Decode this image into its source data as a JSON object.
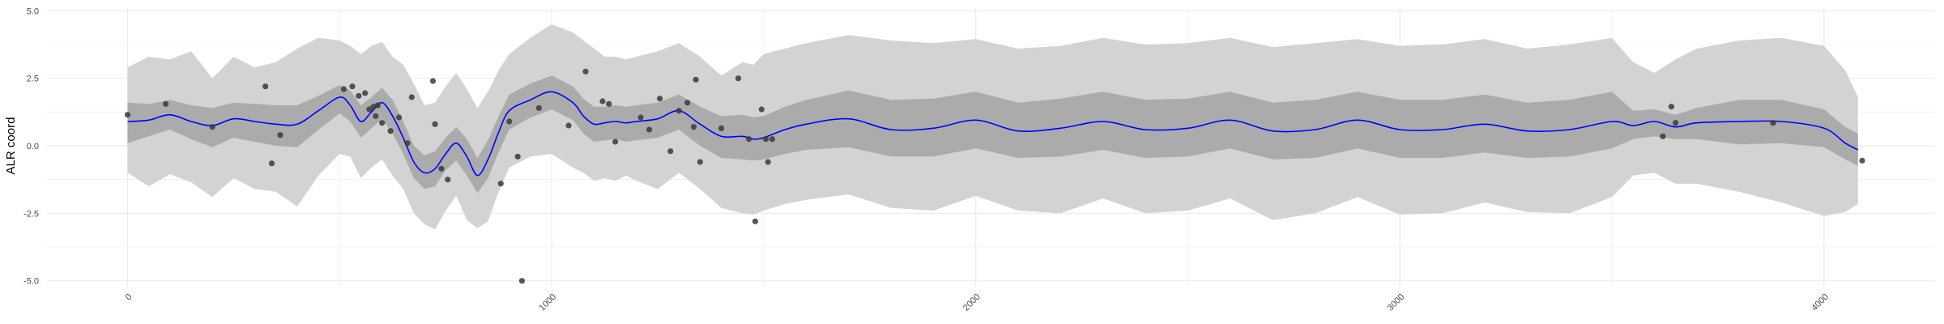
{
  "chart_data": {
    "type": "line",
    "title": "",
    "xlabel": "",
    "ylabel": "ALR coord",
    "xlim": [
      -190,
      4260
    ],
    "ylim": [
      -5.25,
      5.1
    ],
    "x_ticks": [
      0,
      1000,
      2000,
      3000,
      4000
    ],
    "x_tick_labels": [
      "0",
      "1000",
      "2000",
      "3000",
      "4000"
    ],
    "y_ticks": [
      -5.0,
      -2.5,
      0.0,
      2.5,
      5.0
    ],
    "y_tick_labels": [
      "-5.0",
      "-2.5",
      "0.0",
      "2.5",
      "5.0"
    ],
    "grid": true,
    "legend": "none",
    "colors": {
      "line": "#0000ff",
      "inner_band": "#ababab",
      "outer_band": "#d3d3d3",
      "points": "#3a3a3a",
      "grid": "#ebebeb"
    },
    "series": [
      {
        "type": "line",
        "x": [
          0,
          50,
          100,
          150,
          200,
          250,
          300,
          350,
          400,
          450,
          500,
          525,
          550,
          575,
          600,
          625,
          650,
          675,
          700,
          725,
          750,
          775,
          800,
          825,
          850,
          875,
          900,
          950,
          1000,
          1050,
          1075,
          1100,
          1125,
          1150,
          1175,
          1200,
          1250,
          1300,
          1350,
          1400,
          1450,
          1475,
          1500,
          1550,
          1600,
          1700,
          1800,
          1900,
          2000,
          2100,
          2200,
          2300,
          2400,
          2500,
          2600,
          2700,
          2800,
          2900,
          3000,
          3100,
          3200,
          3300,
          3400,
          3500,
          3550,
          3600,
          3650,
          3700,
          3800,
          3900,
          4000,
          4050,
          4080
        ],
        "y": [
          0.9,
          0.95,
          1.15,
          0.9,
          0.75,
          1.0,
          0.9,
          0.8,
          0.8,
          1.3,
          1.8,
          1.5,
          0.9,
          1.25,
          1.6,
          1.1,
          0.3,
          -0.6,
          -1.0,
          -0.85,
          -0.3,
          0.1,
          -0.4,
          -1.1,
          -0.5,
          0.5,
          1.3,
          1.7,
          2.0,
          1.6,
          1.1,
          0.8,
          0.85,
          0.9,
          0.85,
          0.9,
          1.0,
          1.3,
          0.8,
          0.35,
          0.35,
          0.25,
          0.3,
          0.6,
          0.8,
          1.0,
          0.6,
          0.65,
          0.95,
          0.55,
          0.65,
          0.9,
          0.6,
          0.65,
          0.95,
          0.55,
          0.6,
          0.95,
          0.6,
          0.6,
          0.8,
          0.55,
          0.6,
          0.9,
          0.75,
          0.9,
          0.7,
          0.85,
          0.9,
          0.9,
          0.65,
          0.1,
          -0.15
        ]
      },
      {
        "type": "band",
        "x": [
          0,
          50,
          100,
          150,
          200,
          250,
          300,
          350,
          400,
          450,
          500,
          525,
          550,
          575,
          600,
          625,
          650,
          675,
          700,
          725,
          750,
          775,
          800,
          825,
          850,
          875,
          900,
          950,
          1000,
          1050,
          1075,
          1100,
          1125,
          1150,
          1175,
          1200,
          1250,
          1300,
          1350,
          1400,
          1450,
          1475,
          1500,
          1550,
          1600,
          1700,
          1800,
          1900,
          2000,
          2100,
          2200,
          2300,
          2400,
          2500,
          2600,
          2700,
          2800,
          2900,
          3000,
          3100,
          3200,
          3300,
          3400,
          3500,
          3550,
          3600,
          3650,
          3700,
          3800,
          3900,
          4000,
          4050,
          4080
        ],
        "lower": [
          0.1,
          0.35,
          0.6,
          0.25,
          -0.05,
          0.3,
          0.15,
          0.0,
          -0.05,
          0.6,
          1.2,
          0.9,
          0.3,
          0.65,
          1.0,
          0.45,
          -0.3,
          -1.2,
          -1.6,
          -1.5,
          -0.9,
          -0.55,
          -1.1,
          -1.75,
          -1.2,
          -0.25,
          0.6,
          1.05,
          1.35,
          0.95,
          0.45,
          0.15,
          0.2,
          0.25,
          0.15,
          0.2,
          0.3,
          0.6,
          0.0,
          -0.45,
          -0.5,
          -0.55,
          -0.5,
          -0.3,
          -0.15,
          -0.05,
          -0.4,
          -0.4,
          -0.1,
          -0.45,
          -0.4,
          -0.15,
          -0.45,
          -0.4,
          -0.1,
          -0.5,
          -0.45,
          -0.1,
          -0.45,
          -0.45,
          -0.25,
          -0.45,
          -0.4,
          -0.1,
          0.25,
          0.35,
          0.25,
          0.25,
          0.05,
          0.1,
          -0.05,
          -0.5,
          -0.75
        ],
        "upper": [
          1.6,
          1.55,
          1.7,
          1.5,
          1.4,
          1.6,
          1.55,
          1.5,
          1.5,
          1.85,
          2.25,
          2.05,
          1.5,
          1.8,
          2.15,
          1.7,
          0.9,
          0.0,
          -0.35,
          -0.2,
          0.3,
          0.7,
          0.25,
          -0.45,
          0.2,
          1.1,
          1.9,
          2.3,
          2.6,
          2.2,
          1.75,
          1.45,
          1.45,
          1.5,
          1.45,
          1.5,
          1.6,
          1.9,
          1.45,
          1.1,
          1.15,
          1.05,
          1.1,
          1.45,
          1.7,
          2.05,
          1.7,
          1.75,
          2.0,
          1.6,
          1.75,
          2.0,
          1.7,
          1.75,
          2.0,
          1.6,
          1.7,
          2.0,
          1.7,
          1.7,
          1.9,
          1.6,
          1.7,
          2.0,
          1.3,
          1.35,
          1.15,
          1.4,
          1.7,
          1.7,
          1.35,
          0.7,
          0.45
        ]
      },
      {
        "type": "band",
        "x": [
          0,
          50,
          100,
          150,
          200,
          250,
          300,
          350,
          400,
          450,
          500,
          525,
          550,
          575,
          600,
          625,
          650,
          675,
          700,
          725,
          750,
          775,
          800,
          825,
          850,
          875,
          900,
          950,
          1000,
          1050,
          1075,
          1100,
          1125,
          1150,
          1175,
          1200,
          1250,
          1300,
          1350,
          1400,
          1450,
          1475,
          1500,
          1550,
          1600,
          1700,
          1800,
          1900,
          2000,
          2100,
          2200,
          2300,
          2400,
          2500,
          2600,
          2700,
          2800,
          2900,
          3000,
          3100,
          3200,
          3300,
          3400,
          3500,
          3550,
          3600,
          3650,
          3700,
          3800,
          3900,
          4000,
          4050,
          4080
        ],
        "lower": [
          -1.0,
          -1.5,
          -1.05,
          -1.35,
          -1.9,
          -1.2,
          -1.6,
          -1.7,
          -2.25,
          -1.1,
          -0.3,
          -0.4,
          -1.2,
          -0.8,
          -0.5,
          -1.1,
          -1.6,
          -2.5,
          -2.9,
          -3.1,
          -2.4,
          -1.85,
          -2.75,
          -3.05,
          -2.8,
          -1.7,
          -0.8,
          -0.4,
          -0.3,
          -0.8,
          -1.0,
          -1.3,
          -1.2,
          -1.3,
          -1.1,
          -1.3,
          -1.6,
          -1.0,
          -1.6,
          -2.3,
          -2.5,
          -2.55,
          -2.4,
          -2.15,
          -2.0,
          -1.8,
          -2.3,
          -2.4,
          -1.85,
          -2.4,
          -2.5,
          -1.95,
          -2.5,
          -2.4,
          -1.95,
          -2.75,
          -2.5,
          -1.9,
          -2.55,
          -2.5,
          -2.1,
          -2.45,
          -2.5,
          -1.9,
          -1.1,
          -1.0,
          -1.4,
          -1.4,
          -1.7,
          -2.1,
          -2.6,
          -2.45,
          -2.15
        ],
        "upper": [
          2.9,
          3.3,
          3.2,
          3.5,
          2.5,
          3.3,
          2.9,
          3.1,
          3.6,
          4.0,
          3.9,
          3.7,
          3.4,
          3.7,
          3.85,
          3.3,
          3.0,
          2.3,
          1.5,
          1.6,
          2.2,
          2.7,
          2.1,
          1.4,
          2.0,
          2.8,
          3.4,
          4.0,
          4.5,
          4.2,
          3.9,
          3.6,
          3.3,
          3.3,
          3.2,
          3.3,
          3.5,
          3.8,
          3.3,
          2.6,
          3.1,
          3.0,
          3.4,
          3.6,
          3.8,
          4.1,
          3.9,
          3.8,
          3.95,
          3.6,
          3.7,
          4.0,
          3.75,
          3.8,
          4.0,
          3.65,
          3.8,
          3.95,
          3.7,
          3.75,
          3.95,
          3.6,
          3.75,
          4.0,
          3.1,
          2.7,
          3.2,
          3.6,
          3.9,
          4.0,
          3.7,
          2.8,
          1.8
        ]
      },
      {
        "type": "scatter",
        "x": [
          0,
          90,
          200,
          325,
          340,
          360,
          510,
          530,
          545,
          560,
          570,
          580,
          585,
          590,
          600,
          620,
          640,
          660,
          670,
          720,
          725,
          740,
          755,
          880,
          900,
          920,
          930,
          970,
          1040,
          1080,
          1120,
          1135,
          1150,
          1210,
          1230,
          1255,
          1280,
          1300,
          1320,
          1335,
          1340,
          1350,
          1400,
          1440,
          1465,
          1480,
          1495,
          1505,
          1510,
          1520,
          3620,
          3640,
          3650,
          3880,
          4090
        ],
        "y": [
          1.15,
          1.55,
          0.7,
          2.2,
          -0.65,
          0.4,
          2.1,
          2.2,
          1.85,
          1.95,
          1.35,
          1.45,
          1.1,
          1.5,
          0.85,
          0.55,
          1.05,
          0.1,
          1.8,
          2.4,
          0.8,
          -0.85,
          -1.25,
          -1.4,
          0.9,
          -0.4,
          -5.0,
          1.4,
          0.75,
          2.75,
          1.65,
          1.55,
          0.15,
          1.05,
          0.6,
          1.75,
          -0.2,
          1.3,
          1.6,
          0.7,
          2.45,
          -0.6,
          0.65,
          2.5,
          0.25,
          -2.8,
          1.35,
          0.25,
          -0.6,
          0.25,
          0.35,
          1.45,
          0.85,
          0.85,
          -0.55
        ]
      }
    ]
  }
}
